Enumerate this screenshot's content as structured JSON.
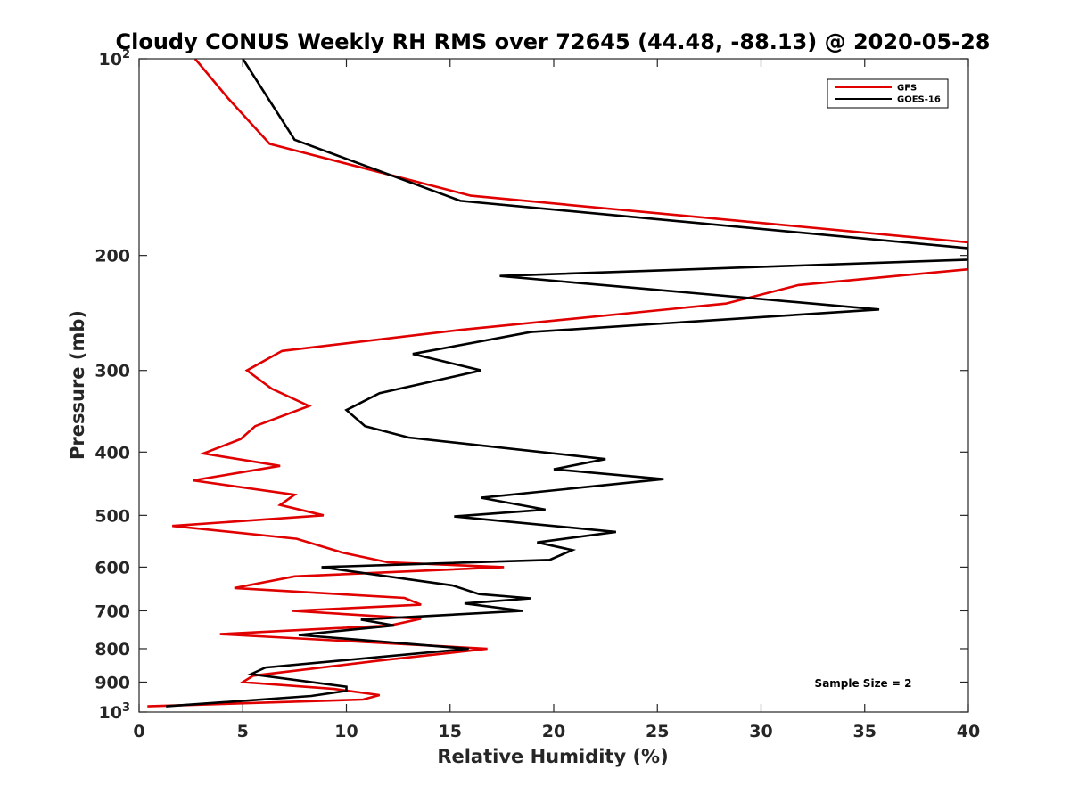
{
  "chart_data": {
    "type": "line",
    "title": "Cloudy CONUS Weekly RH RMS over 72645 (44.48, -88.13) @ 2020-05-28",
    "xlabel": "Relative Humidity (%)",
    "ylabel": "Pressure (mb)",
    "xlim": [
      0,
      40
    ],
    "ylim": [
      100,
      1000
    ],
    "y_scale": "log",
    "y_reversed": true,
    "grid": false,
    "legend_position": "top-right",
    "x_ticks": [
      "0",
      "5",
      "10",
      "15",
      "20",
      "25",
      "30",
      "35",
      "40"
    ],
    "y_ticks": [
      {
        "value": 100,
        "base": "10",
        "exp": "2"
      },
      {
        "value": 200,
        "label": "200"
      },
      {
        "value": 300,
        "label": "300"
      },
      {
        "value": 400,
        "label": "400"
      },
      {
        "value": 500,
        "label": "500"
      },
      {
        "value": 600,
        "label": "600"
      },
      {
        "value": 700,
        "label": "700"
      },
      {
        "value": 800,
        "label": "800"
      },
      {
        "value": 900,
        "label": "900"
      },
      {
        "value": 1000,
        "base": "10",
        "exp": "3"
      }
    ],
    "annotation": "Sample Size = 2",
    "series": [
      {
        "name": "GFS",
        "color": "#e00000",
        "points": [
          {
            "x": 2.7,
            "p": 100
          },
          {
            "x": 4.3,
            "p": 115
          },
          {
            "x": 6.3,
            "p": 135
          },
          {
            "x": 16.0,
            "p": 162
          },
          {
            "x": 40.0,
            "p": 191
          },
          {
            "x": 40.0,
            "p": 210
          },
          {
            "x": 31.8,
            "p": 222
          },
          {
            "x": 28.3,
            "p": 237
          },
          {
            "x": 15.5,
            "p": 260
          },
          {
            "x": 6.9,
            "p": 280
          },
          {
            "x": 5.2,
            "p": 300
          },
          {
            "x": 6.4,
            "p": 320
          },
          {
            "x": 8.2,
            "p": 340
          },
          {
            "x": 5.6,
            "p": 365
          },
          {
            "x": 4.9,
            "p": 382
          },
          {
            "x": 3.1,
            "p": 402
          },
          {
            "x": 6.8,
            "p": 420
          },
          {
            "x": 2.6,
            "p": 442
          },
          {
            "x": 7.5,
            "p": 465
          },
          {
            "x": 6.8,
            "p": 482
          },
          {
            "x": 8.9,
            "p": 500
          },
          {
            "x": 1.6,
            "p": 519
          },
          {
            "x": 7.6,
            "p": 543
          },
          {
            "x": 9.8,
            "p": 570
          },
          {
            "x": 12.0,
            "p": 590
          },
          {
            "x": 17.6,
            "p": 600
          },
          {
            "x": 7.5,
            "p": 620
          },
          {
            "x": 4.6,
            "p": 646
          },
          {
            "x": 12.8,
            "p": 669
          },
          {
            "x": 13.6,
            "p": 685
          },
          {
            "x": 7.4,
            "p": 700
          },
          {
            "x": 13.6,
            "p": 720
          },
          {
            "x": 12.1,
            "p": 737
          },
          {
            "x": 3.9,
            "p": 760
          },
          {
            "x": 16.8,
            "p": 800
          },
          {
            "x": 11.5,
            "p": 835
          },
          {
            "x": 5.5,
            "p": 880
          },
          {
            "x": 5.0,
            "p": 900
          },
          {
            "x": 9.4,
            "p": 922
          },
          {
            "x": 11.6,
            "p": 942
          },
          {
            "x": 10.8,
            "p": 957
          },
          {
            "x": 0.4,
            "p": 980
          }
        ]
      },
      {
        "name": "GOES-16",
        "color": "#000000",
        "points": [
          {
            "x": 5.0,
            "p": 100
          },
          {
            "x": 7.5,
            "p": 133
          },
          {
            "x": 15.5,
            "p": 165
          },
          {
            "x": 40.0,
            "p": 195
          },
          {
            "x": 40.0,
            "p": 203
          },
          {
            "x": 17.4,
            "p": 215
          },
          {
            "x": 35.7,
            "p": 242
          },
          {
            "x": 18.9,
            "p": 262
          },
          {
            "x": 13.2,
            "p": 283
          },
          {
            "x": 16.5,
            "p": 300
          },
          {
            "x": 11.6,
            "p": 325
          },
          {
            "x": 10.0,
            "p": 345
          },
          {
            "x": 10.9,
            "p": 365
          },
          {
            "x": 13.0,
            "p": 380
          },
          {
            "x": 22.5,
            "p": 410
          },
          {
            "x": 20.0,
            "p": 425
          },
          {
            "x": 25.3,
            "p": 440
          },
          {
            "x": 16.5,
            "p": 470
          },
          {
            "x": 19.6,
            "p": 490
          },
          {
            "x": 15.2,
            "p": 502
          },
          {
            "x": 23.0,
            "p": 530
          },
          {
            "x": 19.2,
            "p": 550
          },
          {
            "x": 20.9,
            "p": 565
          },
          {
            "x": 19.8,
            "p": 585
          },
          {
            "x": 8.8,
            "p": 600
          },
          {
            "x": 15.1,
            "p": 640
          },
          {
            "x": 16.4,
            "p": 660
          },
          {
            "x": 18.9,
            "p": 670
          },
          {
            "x": 15.7,
            "p": 682
          },
          {
            "x": 18.5,
            "p": 700
          },
          {
            "x": 10.7,
            "p": 722
          },
          {
            "x": 12.3,
            "p": 737
          },
          {
            "x": 7.7,
            "p": 762
          },
          {
            "x": 15.9,
            "p": 800
          },
          {
            "x": 6.1,
            "p": 855
          },
          {
            "x": 5.4,
            "p": 875
          },
          {
            "x": 10.0,
            "p": 915
          },
          {
            "x": 10.0,
            "p": 928
          },
          {
            "x": 8.3,
            "p": 945
          },
          {
            "x": 1.3,
            "p": 980
          }
        ]
      }
    ]
  }
}
